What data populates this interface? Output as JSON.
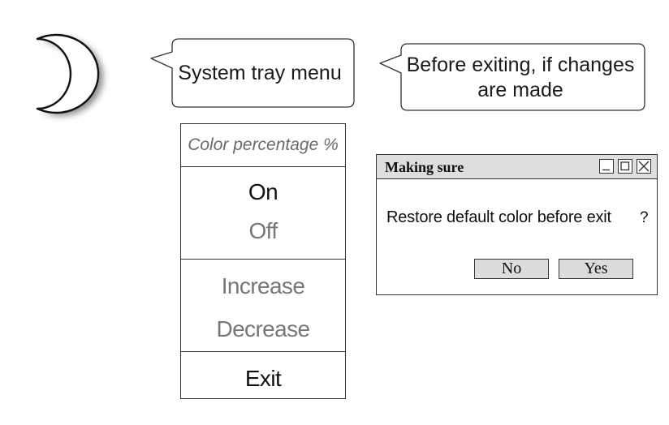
{
  "callouts": {
    "tray_menu": "System tray menu",
    "exit_note": "Before exiting, if changes are made"
  },
  "icons": {
    "tray": "crescent-moon-icon"
  },
  "tray_menu": {
    "header": "Color percentage %",
    "items": [
      {
        "label": "On",
        "state": "enabled"
      },
      {
        "label": "Off",
        "state": "disabled"
      },
      {
        "label": "Increase",
        "state": "disabled"
      },
      {
        "label": "Decrease",
        "state": "disabled"
      },
      {
        "label": "Exit",
        "state": "enabled"
      }
    ]
  },
  "dialog": {
    "title": "Making sure",
    "message": "Restore default color before exit",
    "question_mark": "?",
    "buttons": {
      "no": "No",
      "yes": "Yes"
    }
  },
  "colors": {
    "stroke": "#333333",
    "disabled_text": "#777777",
    "titlebar": "#dedede",
    "button_fill": "#dcdcdc"
  }
}
